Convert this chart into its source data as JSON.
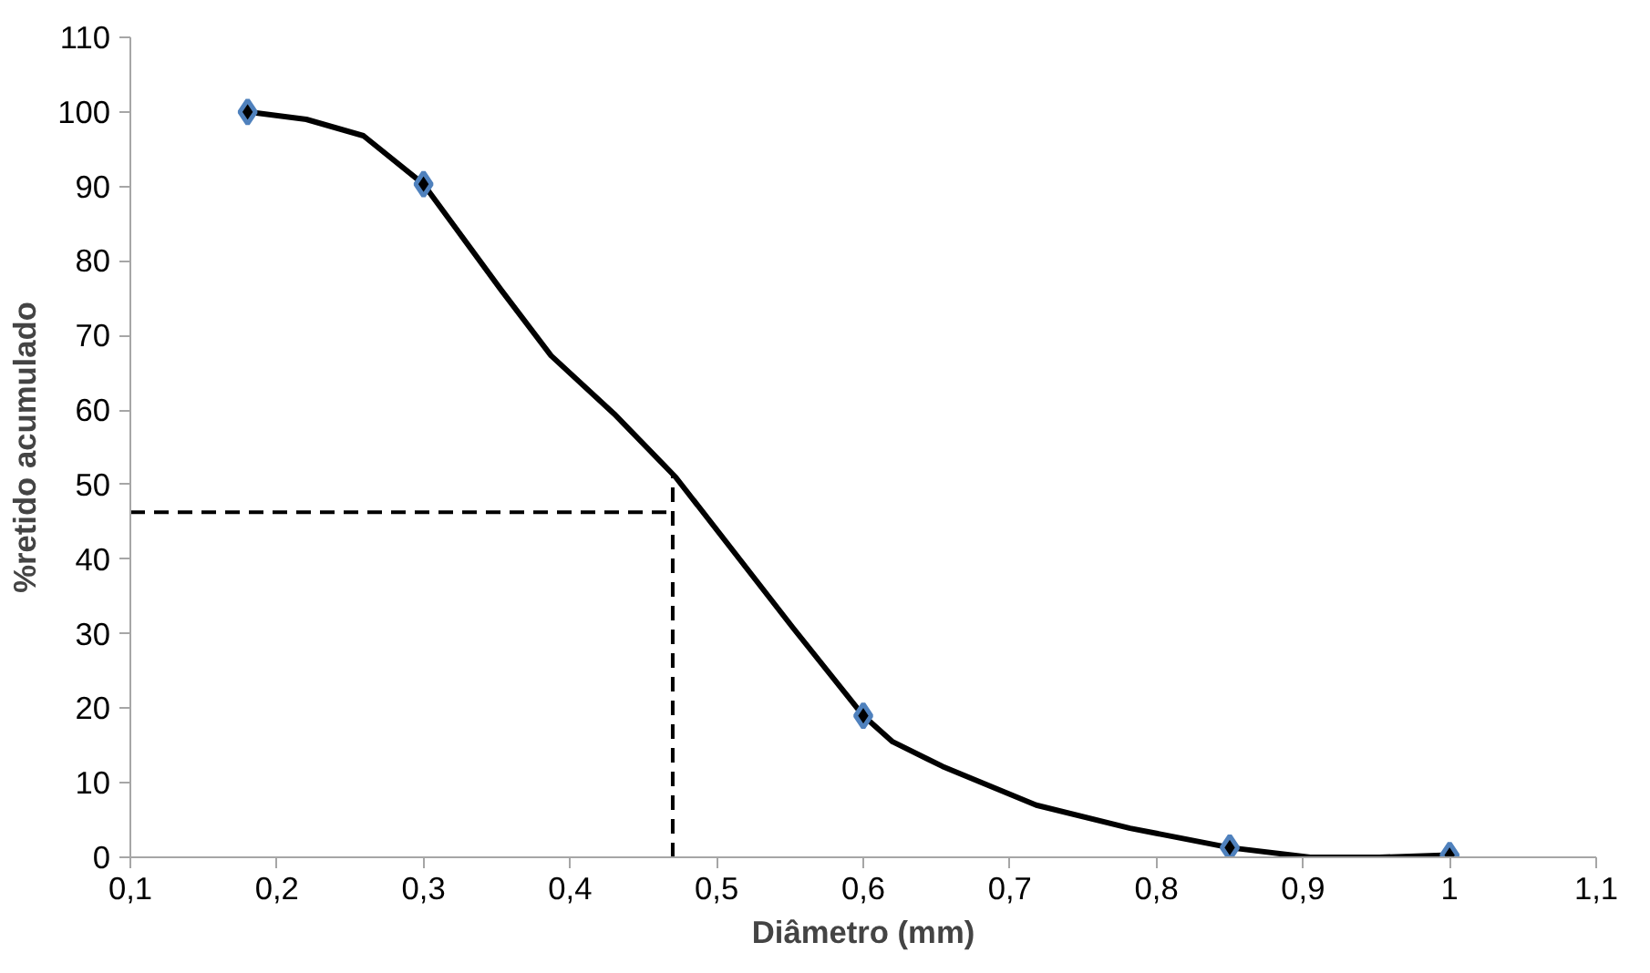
{
  "chart_data": {
    "type": "line",
    "xlabel": "Diâmetro (mm)",
    "ylabel": "%retido acumulado",
    "x": [
      0.18,
      0.3,
      0.6,
      0.85,
      1.0
    ],
    "series": [
      {
        "color": "#000000",
        "marker": "none",
        "x": [
          0.18,
          0.22,
          0.259,
          0.3,
          0.353,
          0.387,
          0.43,
          0.472,
          0.552,
          0.6,
          0.62,
          0.654,
          0.718,
          0.782,
          0.85,
          0.905,
          0.952,
          1.0
        ],
        "values": [
          100,
          99,
          96.8,
          90.3,
          76.1,
          67.3,
          59.5,
          51,
          30.8,
          19,
          15.5,
          12.2,
          7,
          3.9,
          1.3,
          0,
          0,
          0.3
        ]
      },
      {
        "type": "scatter",
        "color": "#4f81bd",
        "values": [
          100,
          90.3,
          19,
          1.3,
          0.3
        ]
      }
    ],
    "marker": "diamond",
    "grid": false,
    "xlim": [
      0.1,
      1.1
    ],
    "xticks": [
      {
        "value": 0.1,
        "label": "0,1"
      },
      {
        "value": 0.2,
        "label": "0,2"
      },
      {
        "value": 0.3,
        "label": "0,3"
      },
      {
        "value": 0.4,
        "label": "0,4"
      },
      {
        "value": 0.5,
        "label": "0,5"
      },
      {
        "value": 0.6,
        "label": "0,6"
      },
      {
        "value": 0.7,
        "label": "0,7"
      },
      {
        "value": 0.8,
        "label": "0,8"
      },
      {
        "value": 0.9,
        "label": "0,9"
      },
      1,
      {
        "value": 1.1,
        "label": "1,1"
      }
    ],
    "ylim": [
      0,
      110
    ],
    "yticks": [
      0,
      10,
      20,
      30,
      40,
      50,
      60,
      70,
      80,
      90,
      100,
      110
    ],
    "ref_lines": [
      {
        "axis": "y",
        "value": 46.3,
        "color": "#000000",
        "line_style": "dashed"
      },
      {
        "axis": "x",
        "value": 0.47,
        "color": "#000000",
        "line_style": "dashed"
      }
    ]
  }
}
